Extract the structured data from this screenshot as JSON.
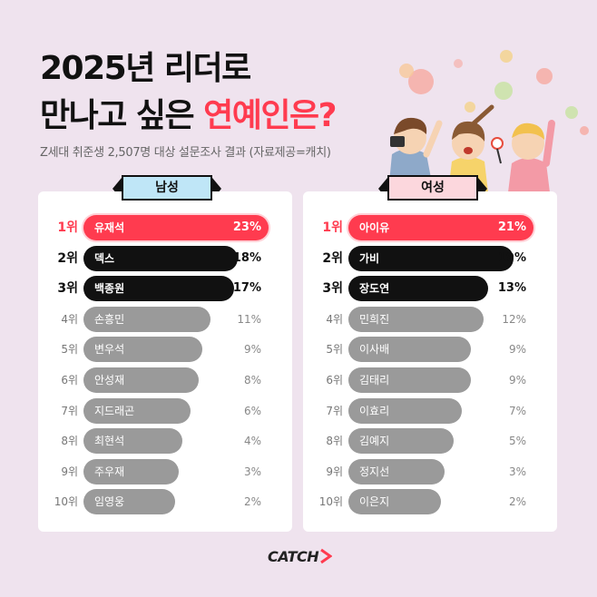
{
  "title_line1": "2025년 리더로",
  "title_line2_a": "만나고 싶은 ",
  "title_line2_b": "연예인은?",
  "subtitle": "Z세대 취준생 2,507명 대상 설문조사 결과 (자료제공=캐치)",
  "logo": "CATCH",
  "colors": {
    "accent": "#ff3b4f",
    "dark": "#111111",
    "gray": "#9a9a9a",
    "background": "#efe3ee"
  },
  "chart_data": [
    {
      "type": "bar",
      "title": "남성",
      "categories": [
        "유재석",
        "덱스",
        "백종원",
        "손흥민",
        "변우석",
        "안성재",
        "지드래곤",
        "최현석",
        "주우재",
        "임영웅"
      ],
      "ranks": [
        "1위",
        "2위",
        "3위",
        "4위",
        "5위",
        "6위",
        "7위",
        "8위",
        "9위",
        "10위"
      ],
      "values": [
        23,
        18,
        17,
        11,
        9,
        8,
        6,
        4,
        3,
        2
      ],
      "value_labels": [
        "23%",
        "18%",
        "17%",
        "11%",
        "9%",
        "8%",
        "6%",
        "4%",
        "3%",
        "2%"
      ]
    },
    {
      "type": "bar",
      "title": "여성",
      "categories": [
        "아이유",
        "가비",
        "장도연",
        "민희진",
        "이사배",
        "김태리",
        "이효리",
        "김예지",
        "정지선",
        "이은지"
      ],
      "ranks": [
        "1위",
        "2위",
        "3위",
        "4위",
        "5위",
        "6위",
        "7위",
        "8위",
        "9위",
        "10위"
      ],
      "values": [
        21,
        19,
        13,
        12,
        9,
        9,
        7,
        5,
        3,
        2
      ],
      "value_labels": [
        "21%",
        "19%",
        "13%",
        "12%",
        "9%",
        "9%",
        "7%",
        "5%",
        "3%",
        "2%"
      ]
    }
  ]
}
